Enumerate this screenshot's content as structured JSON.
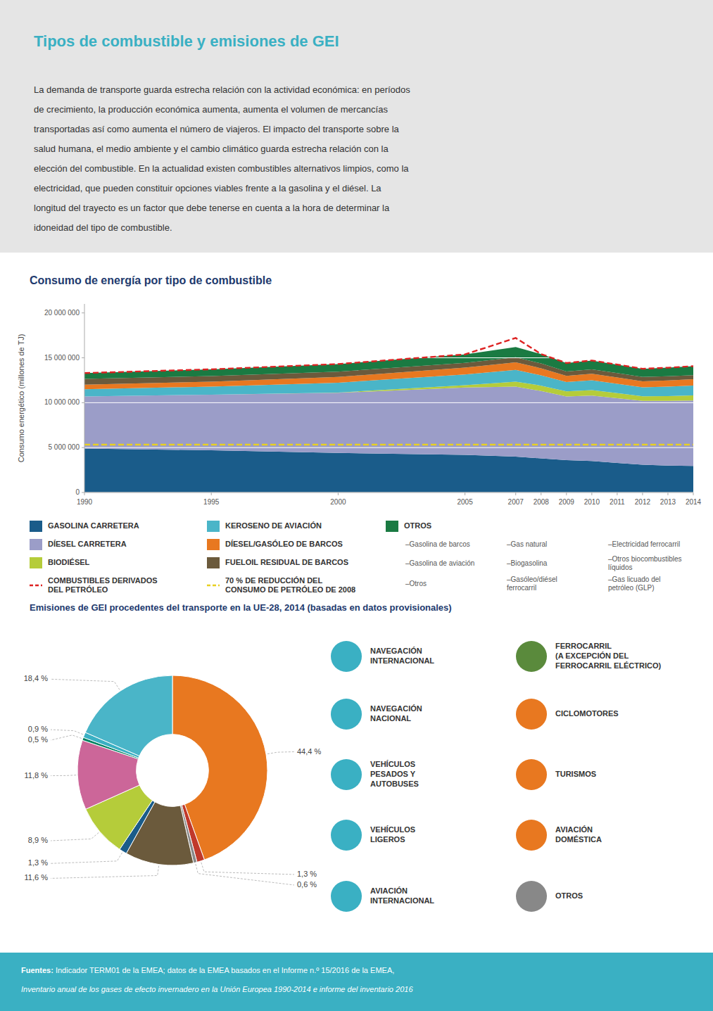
{
  "title": "Tipos de combustible y emisiones de GEI",
  "text": [
    "La demanda de transporte guarda estrecha relación con la actividad económica: en períodos",
    "de crecimiento, la producción económica aumenta, aumenta el volumen de mercancías",
    "transportadas así como aumenta el número de viajeros. El impacto del transporte sobre la",
    "salud humana, el medio ambiente y el cambio climático guarda estrecha relación con la",
    "elección del combustible. En la actualidad existen combustibles alternativos limpios, como la",
    "electricidad, que pueden constituir opciones viables frente a la gasolina y el diésel. La",
    "longitud del trayecto es un factor que debe tenerse en cuenta a la hora de determinar la",
    "idoneidad del tipo de combustible."
  ],
  "chart_data": [
    {
      "type": "area",
      "title": "Consumo de energía por tipo de combustible",
      "ylabel": "Consumo energético (millones de TJ)",
      "x": [
        1990,
        1995,
        2000,
        2005,
        2007,
        2008,
        2009,
        2010,
        2011,
        2012,
        2013,
        2014
      ],
      "xlim": [
        1990,
        2014
      ],
      "xticks": [
        1990,
        1995,
        2000,
        2005,
        2007,
        2008,
        2009,
        2010,
        2011,
        2012,
        2013,
        2014
      ],
      "ylim": [
        0,
        21000000
      ],
      "yticks": [
        0,
        {
          "value": 5000000,
          "label": "5 000 000"
        },
        {
          "value": 10000000,
          "label": "10 000 000"
        },
        {
          "value": 15000000,
          "label": "15 000 000"
        },
        {
          "value": 20000000,
          "label": "20 000 000"
        }
      ],
      "stacked": true,
      "grid": true,
      "legend": "bottom",
      "series": [
        {
          "name": "GASOLINA CARRETERA",
          "color": "#1a5c8a",
          "values": [
            4900000,
            4700000,
            4400000,
            4200000,
            4000000,
            3800000,
            3600000,
            3500000,
            3300000,
            3100000,
            3000000,
            2950000
          ]
        },
        {
          "name": "DÍESEL CARRETERA",
          "color": "#9b9dc8",
          "values": [
            5800000,
            6200000,
            6700000,
            7500000,
            7800000,
            7500000,
            7100000,
            7300000,
            7200000,
            7100000,
            7200000,
            7300000
          ]
        },
        {
          "name": "BIODIÉSEL",
          "color": "#b5cc3a",
          "values": [
            0,
            0,
            30000,
            250000,
            550000,
            600000,
            560000,
            600000,
            560000,
            520000,
            540000,
            560000
          ]
        },
        {
          "name": "KEROSENO DE AVIACIÓN",
          "color": "#4ab5c8",
          "values": [
            800000,
            900000,
            1100000,
            1200000,
            1300000,
            1150000,
            1050000,
            1100000,
            1050000,
            1000000,
            1050000,
            1100000
          ]
        },
        {
          "name": "DÍESEL/GASÓLEO DE BARCOS",
          "color": "#e87820",
          "values": [
            500000,
            550000,
            650000,
            750000,
            850000,
            780000,
            680000,
            720000,
            700000,
            670000,
            680000,
            700000
          ]
        },
        {
          "name": "FUELOIL RESIDUAL DE BARCOS",
          "color": "#6b5a3c",
          "values": [
            650000,
            620000,
            580000,
            530000,
            560000,
            540000,
            480000,
            500000,
            490000,
            480000,
            470000,
            460000
          ]
        },
        {
          "name": "OTROS",
          "color": "#1a7a42",
          "values": [
            650000,
            750000,
            850000,
            950000,
            1150000,
            1050000,
            950000,
            980000,
            950000,
            910000,
            960000,
            1000000
          ]
        },
        {
          "name": "COMBUSTIBLES DERIVADOS\nDEL PETRÓLEO",
          "color": "#dd2222",
          "type": "line",
          "line_style": "dashed",
          "values": [
            13300000,
            13720000,
            14310000,
            15380000,
            17210000,
            15420000,
            14420000,
            14700000,
            14250000,
            13780000,
            13900000,
            14070000
          ]
        },
        {
          "name": "70 % DE REDUCCIÓN DEL\nCONSUMO DE PETRÓLEO DE 2008",
          "color": "#e8d020",
          "type": "line",
          "line_style": "dashed",
          "values": [
            5330000,
            5330000,
            5330000,
            5330000,
            5330000,
            5330000,
            5330000,
            5330000,
            5330000,
            5330000,
            5330000,
            5330000
          ]
        }
      ],
      "annotations": [
        "–Gasolina de barcos",
        "–Gasolina de aviación",
        "–Otros",
        "–Gas natural",
        "–Biogasolina",
        "–Gasóleo/diésel\nferrocarril",
        "–Electricidad ferrocarril",
        "–Otros biocombustibles\nlíquidos",
        "–Gas licuado del\npetróleo (GLP)"
      ]
    },
    {
      "type": "pie",
      "title": "Emisiones de GEI procedentes del transporte en la UE-28, 2014 (basadas en datos provisionales)",
      "values": [
        44.4,
        1.3,
        0.6,
        11.6,
        1.3,
        8.9,
        11.8,
        0.5,
        0.9,
        18.4
      ],
      "value_labels": [
        "44,4 %",
        "1,3 %",
        "0,6 %",
        "11,6 %",
        "1,3 %",
        "8,9 %",
        "11,8 %",
        "0,5 %",
        "0,9 %",
        "18,4 %"
      ],
      "colors": [
        "#e87820",
        "#c0392b",
        "#888888",
        "#6b5a3c",
        "#1a5c8a",
        "#b5cc3a",
        "#cc6699",
        "#008060",
        "#3ab0c3",
        "#4ab5c8"
      ],
      "data_labels": true,
      "annotations": [
        {
          "text": "NAVEGACIÓN\nINTERNACIONAL",
          "color": "#3ab0c3"
        },
        {
          "text": "FERROCARRIL\n(A EXCEPCIÓN DEL\nFERROCARRIL ELÉCTRICO)",
          "color": "#5a8a3c"
        },
        {
          "text": "NAVEGACIÓN\nNACIONAL",
          "color": "#3ab0c3"
        },
        {
          "text": "CICLOMOTORES",
          "color": "#e87820"
        },
        {
          "text": "VEHÍCULOS\nPESADOS Y\nAUTOBUSES",
          "color": "#3ab0c3"
        },
        {
          "text": "TURISMOS",
          "color": "#e87820"
        },
        {
          "text": "VEHÍCULOS\nLIGEROS",
          "color": "#3ab0c3"
        },
        {
          "text": "AVIACIÓN\nDOMÉSTICA",
          "color": "#e87820"
        },
        {
          "text": "AVIACIÓN\nINTERNACIONAL",
          "color": "#3ab0c3"
        },
        {
          "text": "OTROS",
          "color": "#888888"
        }
      ]
    }
  ],
  "footer": [
    "Fuentes: ",
    " Indicador TERM01 de la EMEA; datos de la EMEA basados en el Informe n.º 15/2016 de la EMEA,",
    "Inventario anual de los gases de efecto invernadero en la Unión Europea 1990-2014 e informe del inventario 2016"
  ]
}
